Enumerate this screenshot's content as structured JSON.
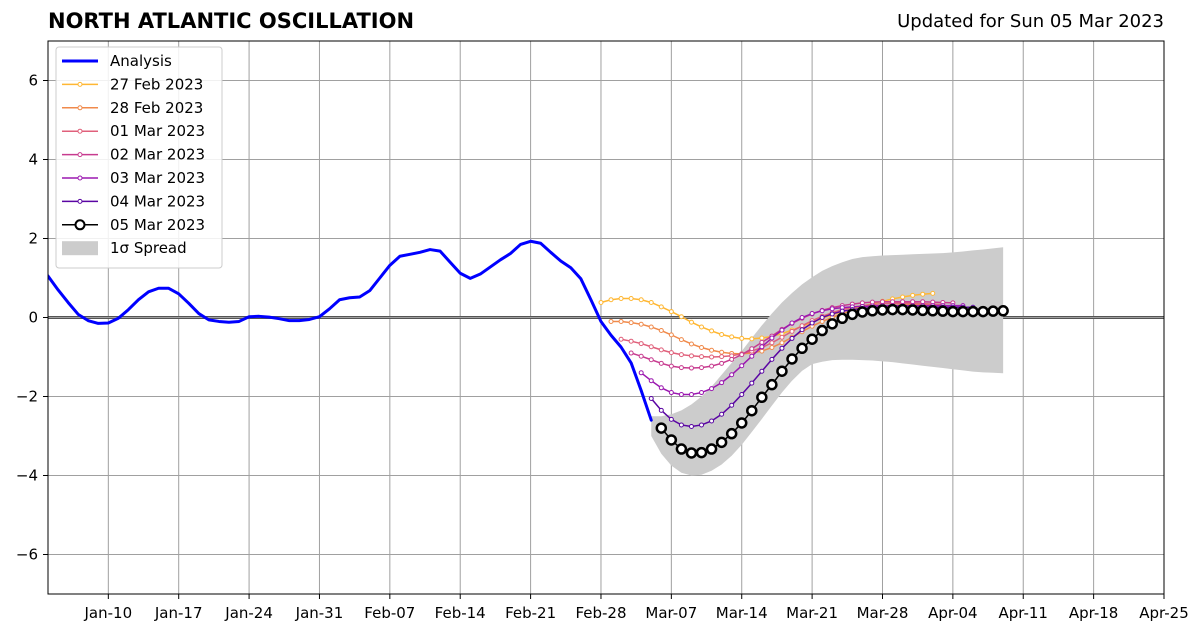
{
  "header": {
    "title": "NORTH ATLANTIC OSCILLATION",
    "updated": "Updated for Sun 05 Mar 2023"
  },
  "chart_data": {
    "type": "line",
    "title": "NORTH ATLANTIC OSCILLATION",
    "subtitle": "Updated for Sun 05 Mar 2023",
    "xlabel": "",
    "ylabel": "",
    "x_range": [
      "2023-01-04",
      "2023-04-25"
    ],
    "ylim": [
      -7,
      7
    ],
    "y_ticks": [
      -6,
      -4,
      -2,
      0,
      2,
      4,
      6
    ],
    "y_tick_labels": [
      "−6",
      "−4",
      "−2",
      "0",
      "2",
      "4",
      "6"
    ],
    "x_ticks": [
      "2023-01-10",
      "2023-01-17",
      "2023-01-24",
      "2023-01-31",
      "2023-02-07",
      "2023-02-14",
      "2023-02-21",
      "2023-02-28",
      "2023-03-07",
      "2023-03-14",
      "2023-03-21",
      "2023-03-28",
      "2023-04-04",
      "2023-04-11",
      "2023-04-18",
      "2023-04-25"
    ],
    "x_tick_labels": [
      "Jan-10",
      "Jan-17",
      "Jan-24",
      "Jan-31",
      "Feb-07",
      "Feb-14",
      "Feb-21",
      "Feb-28",
      "Mar-07",
      "Mar-14",
      "Mar-21",
      "Mar-28",
      "Apr-04",
      "Apr-11",
      "Apr-18",
      "Apr-25"
    ],
    "grid": true,
    "zero_line": true,
    "legend_position": "upper-left",
    "series": [
      {
        "name": "Analysis",
        "color": "#0000ff",
        "style": "thick-line",
        "start": "2023-01-04",
        "values": [
          1.05,
          0.7,
          0.38,
          0.08,
          -0.08,
          -0.15,
          -0.14,
          -0.02,
          0.2,
          0.45,
          0.65,
          0.74,
          0.74,
          0.6,
          0.36,
          0.1,
          -0.06,
          -0.1,
          -0.12,
          -0.1,
          0.02,
          0.03,
          0.01,
          -0.03,
          -0.08,
          -0.08,
          -0.05,
          0.02,
          0.22,
          0.45,
          0.5,
          0.52,
          0.68,
          1.0,
          1.32,
          1.55,
          1.6,
          1.65,
          1.72,
          1.68,
          1.4,
          1.12,
          0.99,
          1.1,
          1.28,
          1.46,
          1.62,
          1.85,
          1.93,
          1.88,
          1.65,
          1.43,
          1.26,
          0.98,
          0.45,
          -0.1,
          -0.45,
          -0.75,
          -1.15,
          -1.85,
          -2.6
        ]
      },
      {
        "name": "27 Feb 2023",
        "color": "#ffb733",
        "style": "small-markers",
        "start": "2023-02-28",
        "values": [
          0.38,
          0.45,
          0.48,
          0.48,
          0.45,
          0.38,
          0.27,
          0.15,
          0.02,
          -0.12,
          -0.24,
          -0.34,
          -0.43,
          -0.49,
          -0.53,
          -0.54,
          -0.52,
          -0.48,
          -0.41,
          -0.32,
          -0.22,
          -0.12,
          -0.02,
          0.07,
          0.15,
          0.22,
          0.29,
          0.35,
          0.41,
          0.47,
          0.52,
          0.56,
          0.59,
          0.61
        ]
      },
      {
        "name": "28 Feb 2023",
        "color": "#f08a4b",
        "style": "small-markers",
        "start": "2023-03-01",
        "values": [
          -0.1,
          -0.1,
          -0.13,
          -0.17,
          -0.24,
          -0.33,
          -0.44,
          -0.56,
          -0.67,
          -0.76,
          -0.83,
          -0.88,
          -0.91,
          -0.92,
          -0.9,
          -0.85,
          -0.76,
          -0.64,
          -0.5,
          -0.36,
          -0.22,
          -0.1,
          0.0,
          0.1,
          0.17,
          0.22,
          0.26,
          0.29,
          0.31,
          0.32,
          0.33,
          0.33,
          0.33
        ]
      },
      {
        "name": "01 Mar 2023",
        "color": "#e0607b",
        "style": "small-markers",
        "start": "2023-03-02",
        "values": [
          -0.55,
          -0.6,
          -0.66,
          -0.74,
          -0.82,
          -0.89,
          -0.94,
          -0.97,
          -0.99,
          -1.0,
          -0.99,
          -0.97,
          -0.92,
          -0.85,
          -0.76,
          -0.64,
          -0.5,
          -0.35,
          -0.21,
          -0.08,
          0.03,
          0.12,
          0.2,
          0.26,
          0.3,
          0.33,
          0.35,
          0.36,
          0.36,
          0.36,
          0.35,
          0.34,
          0.33
        ]
      },
      {
        "name": "02 Mar 2023",
        "color": "#c73b8f",
        "style": "small-markers",
        "start": "2023-03-03",
        "values": [
          -0.9,
          -0.98,
          -1.07,
          -1.16,
          -1.23,
          -1.27,
          -1.28,
          -1.27,
          -1.23,
          -1.16,
          -1.06,
          -0.94,
          -0.79,
          -0.63,
          -0.47,
          -0.3,
          -0.15,
          -0.02,
          0.09,
          0.18,
          0.25,
          0.3,
          0.34,
          0.37,
          0.39,
          0.4,
          0.4,
          0.4,
          0.4,
          0.4,
          0.39,
          0.38,
          0.37
        ]
      },
      {
        "name": "03 Mar 2023",
        "color": "#9b18b0",
        "style": "small-markers",
        "start": "2023-03-04",
        "values": [
          -1.4,
          -1.6,
          -1.78,
          -1.9,
          -1.95,
          -1.95,
          -1.9,
          -1.8,
          -1.65,
          -1.45,
          -1.22,
          -0.98,
          -0.74,
          -0.52,
          -0.32,
          -0.14,
          0.0,
          0.1,
          0.17,
          0.22,
          0.25,
          0.27,
          0.28,
          0.29,
          0.3,
          0.3,
          0.3,
          0.3,
          0.3,
          0.3,
          0.3,
          0.3,
          0.3
        ]
      },
      {
        "name": "04 Mar 2023",
        "color": "#5a05a3",
        "style": "small-markers",
        "start": "2023-03-05",
        "values": [
          -2.05,
          -2.35,
          -2.58,
          -2.72,
          -2.76,
          -2.72,
          -2.62,
          -2.45,
          -2.22,
          -1.95,
          -1.66,
          -1.36,
          -1.06,
          -0.78,
          -0.53,
          -0.31,
          -0.14,
          0.0,
          0.09,
          0.16,
          0.2,
          0.23,
          0.25,
          0.26,
          0.26,
          0.26,
          0.26,
          0.26,
          0.26,
          0.26,
          0.26,
          0.26,
          0.26
        ]
      },
      {
        "name": "05 Mar 2023",
        "color": "#000000",
        "style": "large-open-markers",
        "start": "2023-03-06",
        "values": [
          -2.8,
          -3.1,
          -3.33,
          -3.43,
          -3.42,
          -3.33,
          -3.16,
          -2.94,
          -2.67,
          -2.36,
          -2.02,
          -1.7,
          -1.36,
          -1.05,
          -0.78,
          -0.55,
          -0.33,
          -0.16,
          -0.02,
          0.08,
          0.14,
          0.17,
          0.19,
          0.2,
          0.2,
          0.19,
          0.18,
          0.17,
          0.16,
          0.15,
          0.15,
          0.15,
          0.15,
          0.16,
          0.17
        ]
      }
    ],
    "spread": {
      "name": "1σ Spread",
      "color": "#cccccc",
      "start": "2023-03-05",
      "upper": [
        -2.5,
        -2.5,
        -2.45,
        -2.35,
        -2.2,
        -2.0,
        -1.75,
        -1.45,
        -1.15,
        -0.85,
        -0.52,
        -0.2,
        0.1,
        0.38,
        0.62,
        0.84,
        1.02,
        1.18,
        1.3,
        1.4,
        1.48,
        1.53,
        1.55,
        1.57,
        1.58,
        1.59,
        1.6,
        1.61,
        1.62,
        1.63,
        1.65,
        1.67,
        1.7,
        1.72,
        1.75,
        1.78
      ],
      "lower": [
        -3.0,
        -3.45,
        -3.75,
        -3.93,
        -4.0,
        -3.98,
        -3.88,
        -3.72,
        -3.5,
        -3.22,
        -2.9,
        -2.57,
        -2.23,
        -1.9,
        -1.6,
        -1.35,
        -1.18,
        -1.12,
        -1.08,
        -1.07,
        -1.07,
        -1.08,
        -1.09,
        -1.11,
        -1.13,
        -1.16,
        -1.19,
        -1.22,
        -1.25,
        -1.28,
        -1.31,
        -1.34,
        -1.37,
        -1.39,
        -1.4,
        -1.41
      ]
    }
  }
}
